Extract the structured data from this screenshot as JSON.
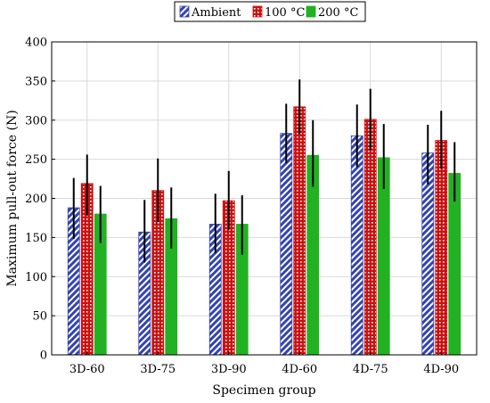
{
  "chart_data": {
    "type": "bar",
    "xlabel": "Specimen group",
    "ylabel": "Maximum pull-out force (N)",
    "ylim": [
      0,
      400
    ],
    "yticks": [
      0,
      50,
      100,
      150,
      200,
      250,
      300,
      350,
      400
    ],
    "grid": "horizontal and vertical",
    "legend_position": "top-center",
    "categories": [
      "3D-60",
      "3D-75",
      "3D-90",
      "4D-60",
      "4D-75",
      "4D-90"
    ],
    "series": [
      {
        "name": "Ambient",
        "color": "#3344b0",
        "pattern": "diagonal hatch",
        "values": [
          188,
          157,
          167,
          283,
          280,
          258
        ],
        "error_low": [
          148,
          118,
          130,
          245,
          240,
          218
        ],
        "error_high": [
          226,
          198,
          206,
          321,
          320,
          294
        ]
      },
      {
        "name": "100 °C",
        "color": "#cc1111",
        "pattern": "dotted grid",
        "values": [
          219,
          210,
          197,
          317,
          301,
          274
        ],
        "error_low": [
          178,
          170,
          160,
          282,
          262,
          238
        ],
        "error_high": [
          256,
          251,
          235,
          352,
          340,
          312
        ]
      },
      {
        "name": "200 °C",
        "color": "#22b122",
        "pattern": "solid",
        "values": [
          180,
          174,
          167,
          255,
          252,
          232
        ],
        "error_low": [
          143,
          136,
          128,
          215,
          212,
          196
        ],
        "error_high": [
          216,
          214,
          204,
          300,
          295,
          272
        ]
      }
    ]
  }
}
